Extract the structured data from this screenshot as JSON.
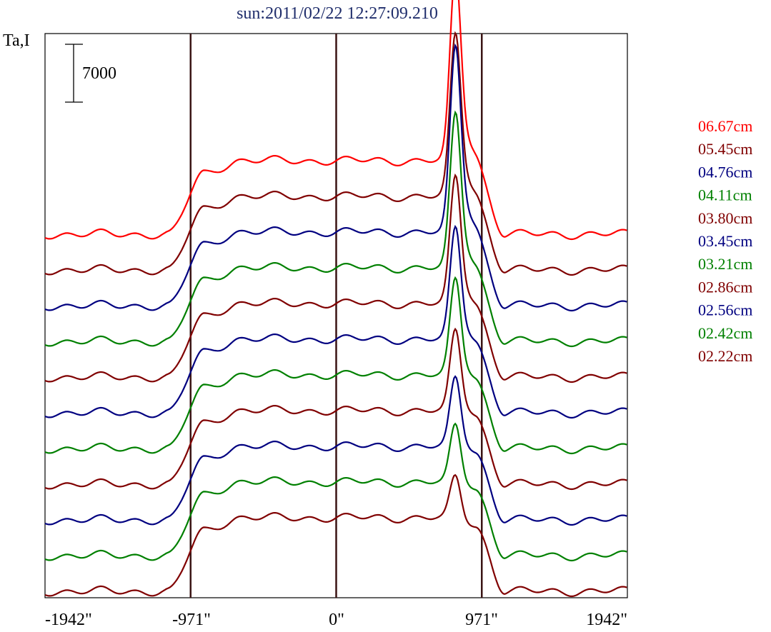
{
  "chart_data": {
    "type": "line",
    "title": "sun:2011/02/22 12:27:09.210",
    "ylabel": "Ta,I",
    "scale_bar_label": "7000",
    "xlim": [
      -1942,
      1942
    ],
    "x_ticks": [
      -1942,
      -971,
      0,
      971,
      1942
    ],
    "x_tick_labels": [
      "-1942\"",
      "-971\"",
      "0\"",
      "971\"",
      "1942\""
    ],
    "vertical_lines": [
      -971,
      0,
      971
    ],
    "grid": false,
    "legend_position": "right",
    "series": [
      {
        "name": "06.67cm",
        "color": "#ff0000",
        "offset": 10,
        "scale": 1.0
      },
      {
        "name": "05.45cm",
        "color": "#800000",
        "offset": 9,
        "scale": 0.86
      },
      {
        "name": "04.76cm",
        "color": "#000080",
        "offset": 8,
        "scale": 0.98
      },
      {
        "name": "04.11cm",
        "color": "#008000",
        "offset": 7,
        "scale": 0.82
      },
      {
        "name": "03.80cm",
        "color": "#800000",
        "offset": 6,
        "scale": 0.68
      },
      {
        "name": "03.45cm",
        "color": "#000080",
        "offset": 5,
        "scale": 0.6
      },
      {
        "name": "03.21cm",
        "color": "#008000",
        "offset": 4,
        "scale": 0.52
      },
      {
        "name": "02.86cm",
        "color": "#800000",
        "offset": 3,
        "scale": 0.44
      },
      {
        "name": "02.56cm",
        "color": "#000080",
        "offset": 2,
        "scale": 0.38
      },
      {
        "name": "02.42cm",
        "color": "#008000",
        "offset": 1,
        "scale": 0.32
      },
      {
        "name": "02.22cm",
        "color": "#800000",
        "offset": 0,
        "scale": 0.24
      }
    ]
  }
}
